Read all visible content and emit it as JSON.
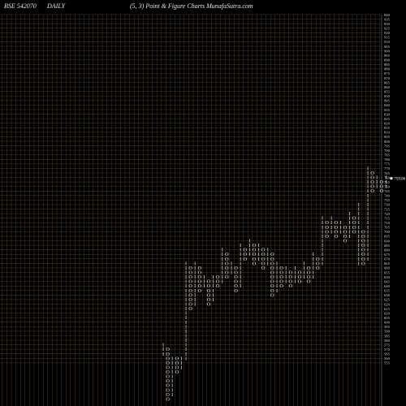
{
  "header": {
    "symbol": "BSE 542070",
    "period": "DAILY",
    "title": "(5,  3) Point & Figure    Charts MunafaSutra.com"
  },
  "chart_data": {
    "type": "point-and-figure",
    "box_size": 5,
    "reversal": 3,
    "last_price_label": "759.00",
    "last_price": 759,
    "price_range": [
      555,
      940
    ],
    "y_ticks": [
      555,
      560,
      565,
      570,
      575,
      580,
      585,
      590,
      595,
      600,
      605,
      610,
      615,
      620,
      625,
      630,
      635,
      640,
      645,
      650,
      655,
      660,
      665,
      670,
      675,
      680,
      685,
      690,
      695,
      700,
      705,
      710,
      715,
      720,
      725,
      730,
      735,
      740,
      745,
      750,
      755,
      760,
      765,
      770,
      775,
      780,
      785,
      790,
      795,
      800,
      805,
      810,
      815,
      820,
      825,
      830,
      835,
      840,
      845,
      850,
      855,
      860,
      865,
      870,
      875,
      880,
      885,
      890,
      895,
      900,
      905,
      910,
      915,
      920,
      925,
      930,
      935,
      940
    ],
    "columns": [
      {
        "type": "X",
        "low": 565,
        "high": 575
      },
      {
        "type": "O",
        "low": 515,
        "high": 570
      },
      {
        "type": "X",
        "low": 520,
        "high": 560
      },
      {
        "type": "O",
        "low": 545,
        "high": 560
      },
      {
        "type": "X",
        "low": 550,
        "high": 560
      },
      {
        "type": "X",
        "low": 560,
        "high": 665
      },
      {
        "type": "O",
        "low": 615,
        "high": 660
      },
      {
        "type": "X",
        "low": 620,
        "high": 665
      },
      {
        "type": "O",
        "low": 635,
        "high": 660
      },
      {
        "type": "X",
        "low": 640,
        "high": 650
      },
      {
        "type": "O",
        "low": 620,
        "high": 645
      },
      {
        "type": "X",
        "low": 625,
        "high": 650
      },
      {
        "type": "O",
        "low": 640,
        "high": 650
      },
      {
        "type": "X",
        "low": 645,
        "high": 680
      },
      {
        "type": "O",
        "low": 650,
        "high": 675
      },
      {
        "type": "X",
        "low": 655,
        "high": 665
      },
      {
        "type": "O",
        "low": 635,
        "high": 660
      },
      {
        "type": "X",
        "low": 640,
        "high": 685
      },
      {
        "type": "O",
        "low": 670,
        "high": 680
      },
      {
        "type": "X",
        "low": 675,
        "high": 690
      },
      {
        "type": "O",
        "low": 665,
        "high": 685
      },
      {
        "type": "X",
        "low": 670,
        "high": 685
      },
      {
        "type": "O",
        "low": 660,
        "high": 680
      },
      {
        "type": "X",
        "low": 665,
        "high": 680
      },
      {
        "type": "O",
        "low": 630,
        "high": 675
      },
      {
        "type": "X",
        "low": 635,
        "high": 665
      },
      {
        "type": "O",
        "low": 640,
        "high": 660
      },
      {
        "type": "X",
        "low": 645,
        "high": 660
      },
      {
        "type": "O",
        "low": 640,
        "high": 655
      },
      {
        "type": "X",
        "low": 645,
        "high": 660
      },
      {
        "type": "O",
        "low": 645,
        "high": 655
      },
      {
        "type": "X",
        "low": 650,
        "high": 665
      },
      {
        "type": "O",
        "low": 645,
        "high": 660
      },
      {
        "type": "X",
        "low": 650,
        "high": 675
      },
      {
        "type": "O",
        "low": 660,
        "high": 670
      },
      {
        "type": "X",
        "low": 665,
        "high": 715
      },
      {
        "type": "O",
        "low": 695,
        "high": 710
      },
      {
        "type": "X",
        "low": 700,
        "high": 715
      },
      {
        "type": "O",
        "low": 695,
        "high": 710
      },
      {
        "type": "X",
        "low": 700,
        "high": 710
      },
      {
        "type": "O",
        "low": 690,
        "high": 705
      },
      {
        "type": "X",
        "low": 695,
        "high": 720
      },
      {
        "type": "O",
        "low": 700,
        "high": 715
      },
      {
        "type": "X",
        "low": 665,
        "high": 730
      },
      {
        "type": "O",
        "low": 665,
        "high": 700
      },
      {
        "type": "X",
        "low": 670,
        "high": 770
      },
      {
        "type": "O",
        "low": 745,
        "high": 765
      },
      {
        "type": "X",
        "low": 750,
        "high": 760
      },
      {
        "type": "O",
        "low": 745,
        "high": 755
      },
      {
        "type": "X",
        "low": 750,
        "high": 760
      }
    ]
  }
}
